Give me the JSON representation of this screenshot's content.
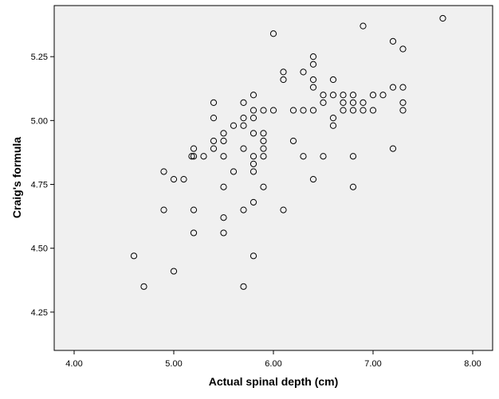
{
  "chart_data": {
    "type": "scatter",
    "xlabel": "Actual spinal depth (cm)",
    "ylabel": "Craig's formula",
    "xlim": [
      3.8,
      8.2
    ],
    "ylim": [
      4.1,
      5.45
    ],
    "xticks": [
      4.0,
      5.0,
      6.0,
      7.0,
      8.0
    ],
    "xtick_labels": [
      "4.00",
      "5.00",
      "6.00",
      "7.00",
      "8.00"
    ],
    "yticks": [
      4.25,
      4.5,
      4.75,
      5.0,
      5.25
    ],
    "ytick_labels": [
      "4.25",
      "4.50",
      "4.75",
      "5.00",
      "5.25"
    ],
    "grid": false,
    "colors": {
      "plot_background": "#f0f0f0",
      "marker_stroke": "#000000"
    },
    "points": [
      [
        4.6,
        4.47
      ],
      [
        4.7,
        4.35
      ],
      [
        4.9,
        4.8
      ],
      [
        4.9,
        4.65
      ],
      [
        5.0,
        4.77
      ],
      [
        5.0,
        4.41
      ],
      [
        5.1,
        4.77
      ],
      [
        5.2,
        4.89
      ],
      [
        5.2,
        4.86
      ],
      [
        5.18,
        4.86
      ],
      [
        5.2,
        4.65
      ],
      [
        5.2,
        4.56
      ],
      [
        5.3,
        4.86
      ],
      [
        5.4,
        5.07
      ],
      [
        5.4,
        5.01
      ],
      [
        5.4,
        4.92
      ],
      [
        5.4,
        4.89
      ],
      [
        5.5,
        4.95
      ],
      [
        5.5,
        4.92
      ],
      [
        5.5,
        4.86
      ],
      [
        5.5,
        4.74
      ],
      [
        5.5,
        4.62
      ],
      [
        5.5,
        4.56
      ],
      [
        5.6,
        4.98
      ],
      [
        5.6,
        4.8
      ],
      [
        5.7,
        5.07
      ],
      [
        5.7,
        5.01
      ],
      [
        5.7,
        4.98
      ],
      [
        5.7,
        4.89
      ],
      [
        5.7,
        4.65
      ],
      [
        5.7,
        4.35
      ],
      [
        5.8,
        5.1
      ],
      [
        5.8,
        5.04
      ],
      [
        5.8,
        5.01
      ],
      [
        5.8,
        4.95
      ],
      [
        5.8,
        4.86
      ],
      [
        5.8,
        4.83
      ],
      [
        5.8,
        4.8
      ],
      [
        5.8,
        4.68
      ],
      [
        5.8,
        4.47
      ],
      [
        5.9,
        5.04
      ],
      [
        5.9,
        4.95
      ],
      [
        5.9,
        4.92
      ],
      [
        5.9,
        4.89
      ],
      [
        5.9,
        4.86
      ],
      [
        5.9,
        4.74
      ],
      [
        6.0,
        5.34
      ],
      [
        6.0,
        5.04
      ],
      [
        6.1,
        5.19
      ],
      [
        6.1,
        5.16
      ],
      [
        6.1,
        4.65
      ],
      [
        6.2,
        5.04
      ],
      [
        6.2,
        4.92
      ],
      [
        6.3,
        5.19
      ],
      [
        6.3,
        5.04
      ],
      [
        6.3,
        4.86
      ],
      [
        6.4,
        5.25
      ],
      [
        6.4,
        5.22
      ],
      [
        6.4,
        5.16
      ],
      [
        6.4,
        5.13
      ],
      [
        6.4,
        5.04
      ],
      [
        6.4,
        4.77
      ],
      [
        6.5,
        5.1
      ],
      [
        6.5,
        5.07
      ],
      [
        6.5,
        4.86
      ],
      [
        6.6,
        5.16
      ],
      [
        6.6,
        5.1
      ],
      [
        6.6,
        5.01
      ],
      [
        6.6,
        4.98
      ],
      [
        6.7,
        5.1
      ],
      [
        6.7,
        5.07
      ],
      [
        6.7,
        5.04
      ],
      [
        6.8,
        5.1
      ],
      [
        6.8,
        5.07
      ],
      [
        6.8,
        5.04
      ],
      [
        6.8,
        4.86
      ],
      [
        6.8,
        4.74
      ],
      [
        6.9,
        5.37
      ],
      [
        6.9,
        5.07
      ],
      [
        6.9,
        5.04
      ],
      [
        7.0,
        5.1
      ],
      [
        7.0,
        5.04
      ],
      [
        7.1,
        5.1
      ],
      [
        7.2,
        5.31
      ],
      [
        7.2,
        5.13
      ],
      [
        7.2,
        4.89
      ],
      [
        7.3,
        5.28
      ],
      [
        7.3,
        5.13
      ],
      [
        7.3,
        5.07
      ],
      [
        7.3,
        5.04
      ],
      [
        7.7,
        5.4
      ]
    ]
  }
}
